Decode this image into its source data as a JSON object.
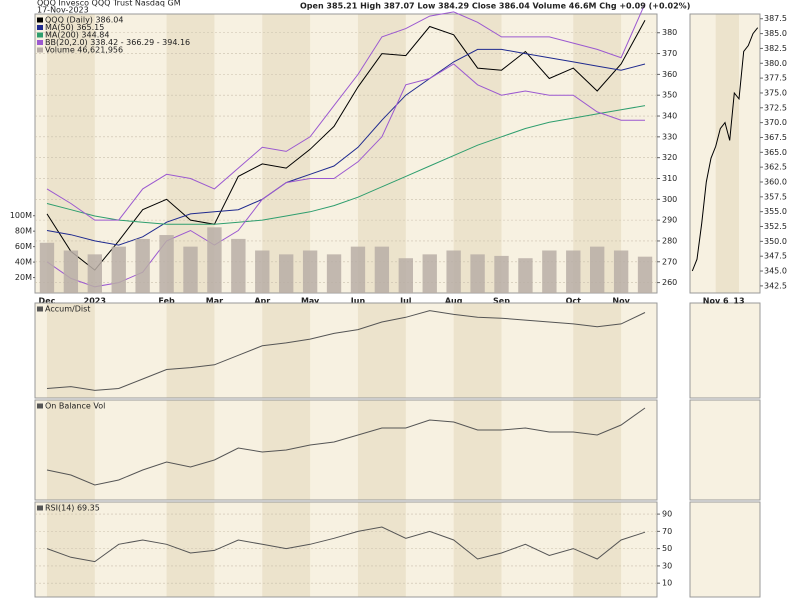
{
  "chart_data": [
    {
      "type": "line",
      "title": "QQQ Invesco QQQ Trust Nasdaq GM",
      "subtitle": "17-Nov-2023",
      "annotation": "Open 385.21  High 387.07  Low 384.29  Close 386.04  Volume 46.6M  Chg +0.09 (+0.02%)",
      "categories": [
        "Dec",
        null,
        "2023",
        null,
        null,
        "Feb",
        null,
        "Mar",
        null,
        "Apr",
        null,
        "May",
        null,
        "Jun",
        null,
        "Jul",
        null,
        "Aug",
        null,
        "Sep",
        null,
        null,
        "Oct",
        null,
        "Nov",
        null
      ],
      "series": [
        {
          "name": "QQQ (Daily) 386.04",
          "color": "#000000",
          "values": [
            293,
            275,
            266,
            280,
            295,
            300,
            290,
            288,
            311,
            317,
            315,
            324,
            335,
            354,
            370,
            369,
            383,
            379,
            363,
            362,
            371,
            358,
            363,
            352,
            365,
            386
          ]
        },
        {
          "name": "MA(50) 365.15",
          "color": "#1f2a8f",
          "values": [
            285,
            283,
            280,
            278,
            282,
            289,
            293,
            294,
            295,
            300,
            308,
            312,
            316,
            325,
            338,
            350,
            358,
            366,
            372,
            372,
            370,
            368,
            366,
            364,
            362,
            365
          ]
        },
        {
          "name": "MA(200) 344.84",
          "color": "#2e9e6e",
          "values": [
            298,
            295,
            292,
            290,
            289,
            288,
            288,
            288,
            289,
            290,
            292,
            294,
            297,
            301,
            306,
            311,
            316,
            321,
            326,
            330,
            334,
            337,
            339,
            341,
            343,
            345
          ]
        },
        {
          "name": "BB(20,2.0) 338.42 - 366.29 - 394.16",
          "color": "#9b59d0",
          "values": [
            305,
            298,
            290,
            290,
            305,
            312,
            310,
            305,
            315,
            325,
            323,
            330,
            345,
            360,
            378,
            382,
            388,
            390,
            385,
            378,
            378,
            378,
            375,
            372,
            368,
            394
          ],
          "lower": [
            270,
            262,
            258,
            260,
            265,
            280,
            285,
            278,
            285,
            300,
            308,
            310,
            310,
            318,
            330,
            355,
            358,
            365,
            355,
            350,
            352,
            350,
            350,
            342,
            338,
            338
          ]
        },
        {
          "name": "Volume 46,621,956",
          "color": "#b8aea6",
          "axis": "y2",
          "values": [
            65000000,
            55000000,
            50000000,
            60000000,
            70000000,
            75000000,
            60000000,
            85000000,
            70000000,
            55000000,
            50000000,
            55000000,
            50000000,
            60000000,
            60000000,
            45000000,
            50000000,
            55000000,
            50000000,
            48000000,
            45000000,
            55000000,
            55000000,
            60000000,
            55000000,
            47000000
          ]
        }
      ],
      "ylim": [
        255,
        389
      ],
      "yticks": [
        260,
        270,
        280,
        290,
        300,
        310,
        320,
        330,
        340,
        350,
        360,
        370,
        380
      ],
      "y2lim": [
        0,
        361000000
      ],
      "y2ticks": [
        {
          "value": 20000000,
          "label": "20M"
        },
        {
          "value": 40000000,
          "label": "40M"
        },
        {
          "value": 60000000,
          "label": "60M"
        },
        {
          "value": 80000000,
          "label": "80M"
        },
        {
          "value": 100000000,
          "label": "100M"
        }
      ],
      "grid": true
    },
    {
      "type": "line",
      "categories": [
        null,
        null,
        null,
        null,
        null,
        "Nov 6",
        null,
        null,
        null,
        null,
        "13",
        null,
        null,
        null,
        null
      ],
      "series": [
        {
          "color": "#000000",
          "values": [
            345,
            347,
            353,
            360,
            364,
            366,
            369,
            370,
            367,
            375,
            374,
            382,
            383,
            385,
            386
          ]
        }
      ],
      "ylim": [
        341.3,
        388.3
      ],
      "yticks": [
        342.5,
        {
          "value": 345,
          "label": "345.0"
        },
        347.5,
        {
          "value": 350,
          "label": "350.0"
        },
        352.5,
        {
          "value": 355,
          "label": "355.0"
        },
        357.5,
        {
          "value": 360,
          "label": "360.0"
        },
        362.5,
        {
          "value": 365,
          "label": "365.0"
        },
        367.5,
        {
          "value": 370,
          "label": "370.0"
        },
        372.5,
        {
          "value": 375,
          "label": "375.0"
        },
        377.5,
        {
          "value": 380,
          "label": "380.0"
        },
        382.5,
        {
          "value": 385,
          "label": "385.0"
        },
        387.5
      ],
      "grid": false
    },
    {
      "type": "line",
      "categories": [
        "Dec",
        null,
        "2023",
        null,
        null,
        "Feb",
        null,
        "Mar",
        null,
        "Apr",
        null,
        "May",
        null,
        "Jun",
        null,
        "Jul",
        null,
        "Aug",
        null,
        "Sep",
        null,
        null,
        "Oct",
        null,
        "Nov",
        null
      ],
      "series": [
        {
          "name": "Accum/Dist",
          "color": "#555555",
          "values": [
            10,
            12,
            8,
            10,
            20,
            30,
            32,
            35,
            45,
            55,
            58,
            62,
            68,
            72,
            80,
            85,
            92,
            88,
            85,
            84,
            82,
            80,
            78,
            75,
            78,
            90
          ]
        }
      ],
      "ylim": [
        0,
        100
      ],
      "yticks": [],
      "grid": false
    },
    {
      "type": "line",
      "categories": [
        "Dec",
        null,
        "2023",
        null,
        null,
        "Feb",
        null,
        "Mar",
        null,
        "Apr",
        null,
        "May",
        null,
        "Jun",
        null,
        "Jul",
        null,
        "Aug",
        null,
        "Sep",
        null,
        null,
        "Oct",
        null,
        "Nov",
        null
      ],
      "series": [
        {
          "name": "On Balance Vol",
          "color": "#555555",
          "values": [
            30,
            25,
            15,
            20,
            30,
            38,
            33,
            40,
            52,
            48,
            50,
            55,
            58,
            65,
            72,
            72,
            80,
            78,
            70,
            70,
            72,
            68,
            68,
            65,
            75,
            92
          ]
        }
      ],
      "ylim": [
        0,
        100
      ],
      "yticks": [],
      "grid": false
    },
    {
      "type": "line",
      "categories": [
        "Dec",
        null,
        "2023",
        null,
        null,
        "Feb",
        null,
        "Mar",
        null,
        "Apr",
        null,
        "May",
        null,
        "Jun",
        null,
        "Jul",
        null,
        "Aug",
        null,
        "Sep",
        null,
        null,
        "Oct",
        null,
        "Nov",
        null
      ],
      "series": [
        {
          "name": "RSI(14) 69.35",
          "color": "#555555",
          "values": [
            50,
            40,
            35,
            55,
            60,
            55,
            45,
            48,
            60,
            55,
            50,
            55,
            62,
            70,
            75,
            62,
            70,
            60,
            38,
            45,
            55,
            42,
            50,
            38,
            60,
            69
          ]
        }
      ],
      "ylim": [
        -6,
        104
      ],
      "yticks": [
        10,
        30,
        50,
        70,
        90
      ],
      "grid": true
    }
  ]
}
